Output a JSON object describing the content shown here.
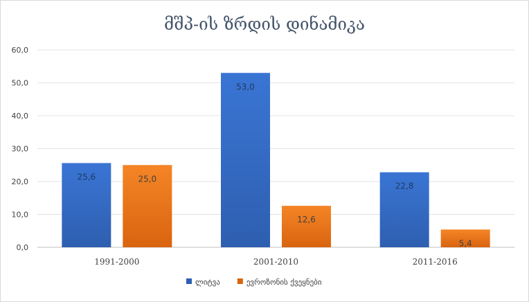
{
  "chart_data": {
    "type": "bar",
    "title": "მშპ-ის ზრდის დინამიკა",
    "categories": [
      "1991-2000",
      "2001-2010",
      "2011-2016"
    ],
    "series": [
      {
        "name": "ლიტვა",
        "values": [
          25.6,
          53.0,
          22.8
        ],
        "labels": [
          "25,6",
          "53,0",
          "22,8"
        ],
        "color": "#2e5fb0",
        "color_light": "#3a75d4",
        "label_color": "#1f3864"
      },
      {
        "name": "ევროზონის ქვეყნები",
        "values": [
          25.0,
          12.6,
          5.4
        ],
        "labels": [
          "25,0",
          "12,6",
          "5,4"
        ],
        "color": "#d96410",
        "color_light": "#f58526",
        "label_color": "#404040"
      }
    ],
    "yticks": [
      "0,0",
      "10,0",
      "20,0",
      "30,0",
      "40,0",
      "50,0",
      "60,0"
    ],
    "ylim": [
      0,
      60
    ],
    "xlabel": "",
    "ylabel": "",
    "grid": true,
    "legend": "bottom"
  }
}
